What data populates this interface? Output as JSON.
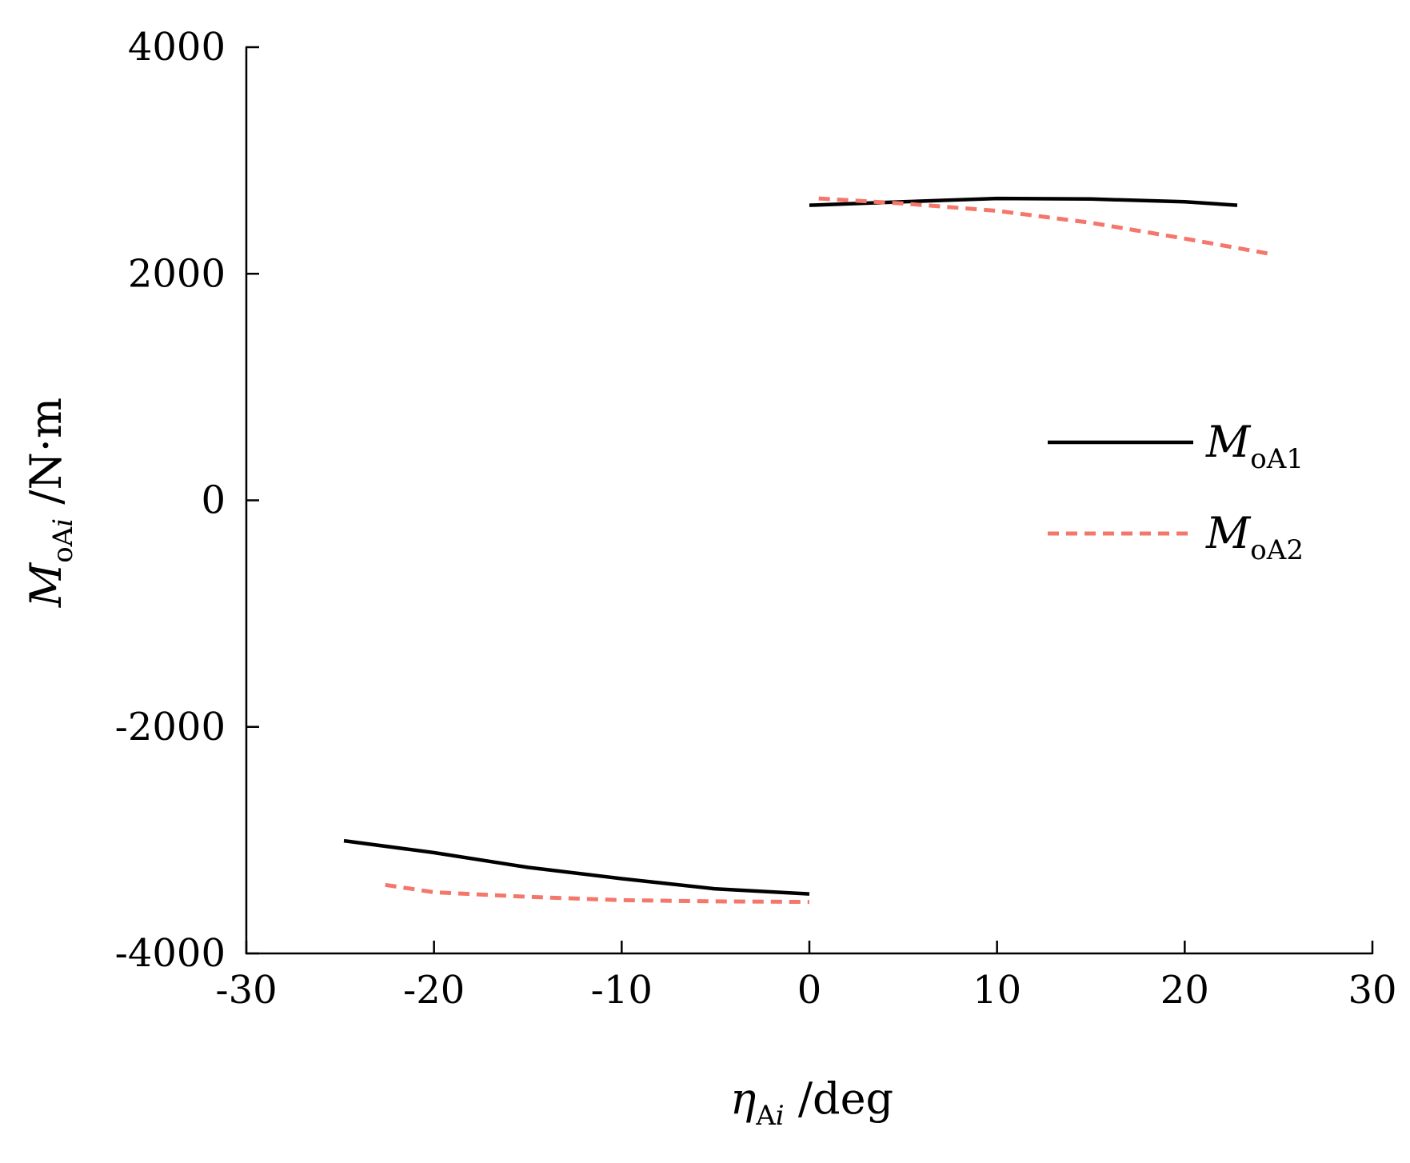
{
  "chart_data": {
    "type": "line",
    "title": "",
    "xlabel": {
      "symbol": "η",
      "subscript_upright": "A",
      "subscript_italic": "i",
      "unit": " /deg"
    },
    "ylabel": {
      "symbol": "M",
      "subscript_upright": "oA",
      "subscript_italic": "i",
      "unit": " /N·m"
    },
    "xlim": [
      -30,
      30
    ],
    "ylim": [
      -4000,
      4000
    ],
    "x_ticks": [
      -30,
      -20,
      -10,
      0,
      10,
      20,
      30
    ],
    "x_tick_labels": [
      "-30",
      "-20",
      "-10",
      "0",
      "10",
      "20",
      "30"
    ],
    "y_ticks": [
      -4000,
      -2000,
      0,
      2000,
      4000
    ],
    "y_tick_labels": [
      "-4000",
      "-2000",
      "0",
      "2000",
      "4000"
    ],
    "grid": false,
    "legend_position": "right-middle",
    "series": [
      {
        "name": "M_oA1",
        "legend_symbol": "M",
        "legend_subscript": "oA1",
        "color": "#000000",
        "style": "solid",
        "segments": [
          [
            {
              "x": -24.8,
              "y": -3005
            },
            {
              "x": -20,
              "y": -3110
            },
            {
              "x": -15,
              "y": -3240
            },
            {
              "x": -10,
              "y": -3340
            },
            {
              "x": -5,
              "y": -3430
            },
            {
              "x": 0,
              "y": -3475
            }
          ],
          [
            {
              "x": 0,
              "y": 2605
            },
            {
              "x": 5,
              "y": 2635
            },
            {
              "x": 10,
              "y": 2665
            },
            {
              "x": 15,
              "y": 2660
            },
            {
              "x": 20,
              "y": 2635
            },
            {
              "x": 22.8,
              "y": 2605
            }
          ]
        ]
      },
      {
        "name": "M_oA2",
        "legend_symbol": "M",
        "legend_subscript": "oA2",
        "color": "#f4776b",
        "style": "dashed",
        "segments": [
          [
            {
              "x": -22.6,
              "y": -3395
            },
            {
              "x": -20,
              "y": -3460
            },
            {
              "x": -15,
              "y": -3500
            },
            {
              "x": -10,
              "y": -3530
            },
            {
              "x": -5,
              "y": -3540
            },
            {
              "x": 0,
              "y": -3545
            }
          ],
          [
            {
              "x": 0.5,
              "y": 2665
            },
            {
              "x": 5,
              "y": 2620
            },
            {
              "x": 10,
              "y": 2555
            },
            {
              "x": 15,
              "y": 2450
            },
            {
              "x": 20,
              "y": 2310
            },
            {
              "x": 24.4,
              "y": 2180
            }
          ]
        ]
      }
    ]
  }
}
